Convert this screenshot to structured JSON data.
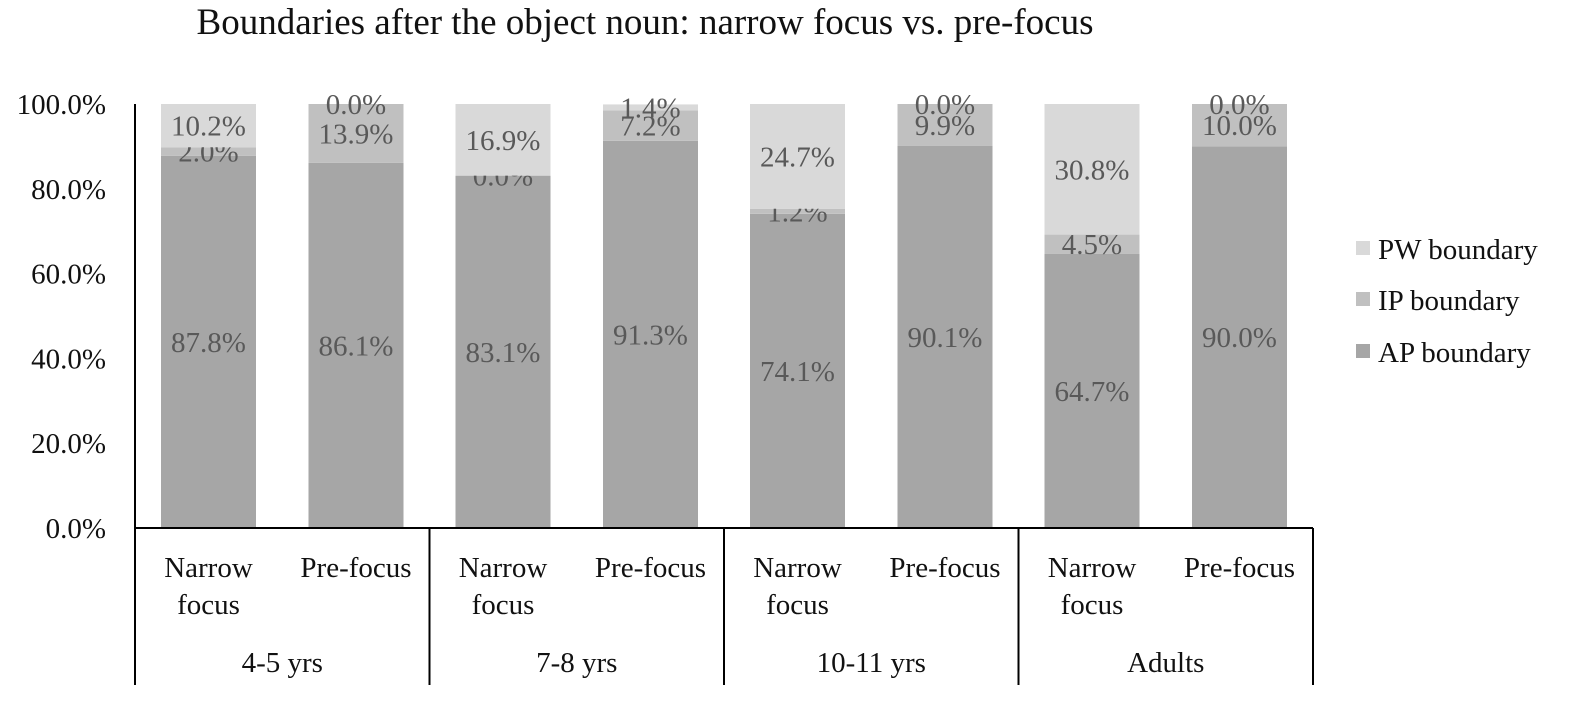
{
  "chart_data": {
    "type": "bar",
    "stacked": true,
    "title": "Boundaries after the object noun: narrow focus vs. pre-focus",
    "ylim": [
      0,
      100
    ],
    "y_ticks": [
      "0.0%",
      "20.0%",
      "40.0%",
      "60.0%",
      "80.0%",
      "100.0%"
    ],
    "groups": [
      {
        "name": "4-5 yrs",
        "bars": [
          {
            "line1": "Narrow",
            "line2": "focus"
          },
          {
            "line1": "Pre-focus",
            "line2": ""
          }
        ]
      },
      {
        "name": "7-8 yrs",
        "bars": [
          {
            "line1": "Narrow",
            "line2": "focus"
          },
          {
            "line1": "Pre-focus",
            "line2": ""
          }
        ]
      },
      {
        "name": "10-11 yrs",
        "bars": [
          {
            "line1": "Narrow",
            "line2": "focus"
          },
          {
            "line1": "Pre-focus",
            "line2": ""
          }
        ]
      },
      {
        "name": "Adults",
        "bars": [
          {
            "line1": "Narrow",
            "line2": "focus"
          },
          {
            "line1": "Pre-focus",
            "line2": ""
          }
        ]
      }
    ],
    "series": [
      {
        "name": "AP boundary",
        "color": "#a6a6a6",
        "values": [
          87.8,
          86.1,
          83.1,
          91.3,
          74.1,
          90.1,
          64.7,
          90.0
        ],
        "labels": [
          "87.8%",
          "86.1%",
          "83.1%",
          "91.3%",
          "74.1%",
          "90.1%",
          "64.7%",
          "90.0%"
        ]
      },
      {
        "name": "IP boundary",
        "color": "#c0c0c0",
        "values": [
          2.0,
          13.9,
          0.0,
          7.2,
          1.2,
          9.9,
          4.5,
          10.0
        ],
        "labels": [
          "2.0%",
          "13.9%",
          "0.0%",
          "7.2%",
          "1.2%",
          "9.9%",
          "4.5%",
          "10.0%"
        ]
      },
      {
        "name": "PW boundary",
        "color": "#d9d9d9",
        "values": [
          10.2,
          0.0,
          16.9,
          1.4,
          24.7,
          0.0,
          30.8,
          0.0
        ],
        "labels": [
          "10.2%",
          "0.0%",
          "16.9%",
          "1.4%",
          "24.7%",
          "0.0%",
          "30.8%",
          "0.0%"
        ]
      }
    ],
    "legend": {
      "position": "right",
      "order": [
        "PW boundary",
        "IP boundary",
        "AP boundary"
      ]
    },
    "grid": false
  }
}
